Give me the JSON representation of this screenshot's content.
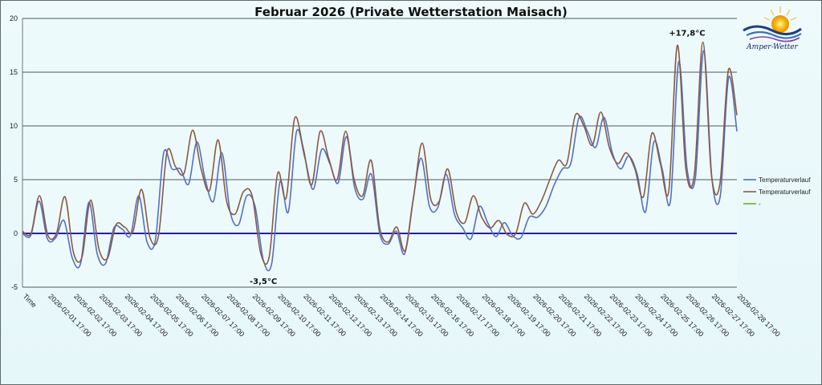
{
  "chart_data": {
    "type": "line",
    "title": "Februar 2026 (Private Wetterstation Maisach)",
    "ylim": [
      -5,
      20
    ],
    "yticks": [
      -5,
      0,
      5,
      10,
      15,
      20
    ],
    "x_labels": [
      "Time",
      "2026-02-01 17:00",
      "2026-02-02 17:00",
      "2026-02-03 17:00",
      "2026-02-04 17:00",
      "2026-02-05 17:00",
      "2026-02-06 17:00",
      "2026-02-07 17:00",
      "2026-02-08 17:00",
      "2026-02-09 17:00",
      "2026-02-10 17:00",
      "2026-02-11 17:00",
      "2026-02-12 17:00",
      "2026-02-13 17:00",
      "2026-02-14 17:00",
      "2026-02-15 17:00",
      "2026-02-16 17:00",
      "2026-02-17 17:00",
      "2026-02-18 17:00",
      "2026-02-19 17:00",
      "2026-02-20 17:00",
      "2026-02-21 17:00",
      "2026-02-22 17:00",
      "2026-02-23 17:00",
      "2026-02-24 17:00",
      "2026-02-25 17:00",
      "2026-02-26 17:00",
      "2026-02-27 17:00",
      "2026-02-28 17:00"
    ],
    "grid": true,
    "legend_position": "right",
    "zero_line_color": "#2a1ab0",
    "series": [
      {
        "name": "Temperaturverlauf",
        "color": "#5470c0",
        "values": [
          0,
          -0.2,
          3.0,
          -0.5,
          -0.4,
          1.2,
          -2.3,
          -2.8,
          2.9,
          -1.9,
          -2.8,
          0.5,
          0.4,
          -0.2,
          3.5,
          -0.8,
          -0.6,
          7.5,
          6.0,
          6.0,
          4.6,
          8.5,
          5.0,
          3.0,
          7.5,
          2.0,
          0.8,
          3.5,
          2.5,
          -2.5,
          -2.8,
          4.8,
          2.0,
          9.5,
          7.0,
          4.1,
          7.8,
          6.5,
          4.7,
          9.0,
          4.2,
          3.2,
          5.5,
          0,
          -1.0,
          0.2,
          -1.9,
          3.0,
          7.0,
          2.5,
          2.4,
          5.5,
          1.8,
          0.5,
          -0.5,
          2.5,
          1.0,
          -0.3,
          1.0,
          -0.2,
          -0.4,
          1.5,
          1.5,
          2.5,
          4.5,
          6.0,
          6.5,
          10.8,
          9.5,
          8.0,
          10.8,
          7.5,
          6.0,
          7.2,
          5.5,
          2.0,
          8.5,
          6.0,
          3.0,
          16.0,
          6.0,
          5.2,
          17.0,
          5.0,
          3.5,
          14.5,
          9.5
        ]
      },
      {
        "name": "Temperaturverlauf",
        "color": "#8a5a44",
        "values": [
          0.2,
          0,
          3.5,
          -0.2,
          0,
          3.4,
          -1.8,
          -2.2,
          3.1,
          -1.5,
          -2.3,
          0.8,
          0.6,
          0.2,
          4.1,
          -0.4,
          -0.2,
          7.6,
          6.2,
          5.6,
          9.6,
          6.0,
          4.0,
          8.7,
          3.0,
          1.8,
          3.9,
          3.5,
          -1.8,
          -2.2,
          5.6,
          3.3,
          10.7,
          8.0,
          4.5,
          9.5,
          7.0,
          5.0,
          9.5,
          5.0,
          3.5,
          6.8,
          0.5,
          -0.8,
          0.6,
          -1.6,
          3.5,
          8.4,
          3.2,
          3.0,
          6.0,
          2.0,
          1.0,
          3.5,
          1.5,
          0.5,
          1.2,
          -0.1,
          0,
          2.8,
          1.8,
          3.0,
          5.0,
          6.8,
          6.5,
          11.0,
          10.0,
          8.2,
          11.3,
          8.0,
          6.5,
          7.5,
          6.0,
          3.4,
          9.3,
          6.5,
          4.0,
          17.5,
          6.0,
          5.5,
          17.8,
          5.5,
          4.6,
          15.2,
          11.0
        ]
      },
      {
        "name": "-",
        "color": "#7aa830",
        "values": []
      }
    ],
    "annotations": [
      {
        "text": "-3,5°C",
        "x_index": 29,
        "y": -3.5,
        "position": "below"
      },
      {
        "text": "+17,8°C",
        "x_index": 80,
        "y": 17.8,
        "position": "above"
      }
    ]
  },
  "logo": {
    "text": "Amper-Wetter",
    "sun_color": "#f5b800",
    "wave_color": "#1a3f8a"
  }
}
